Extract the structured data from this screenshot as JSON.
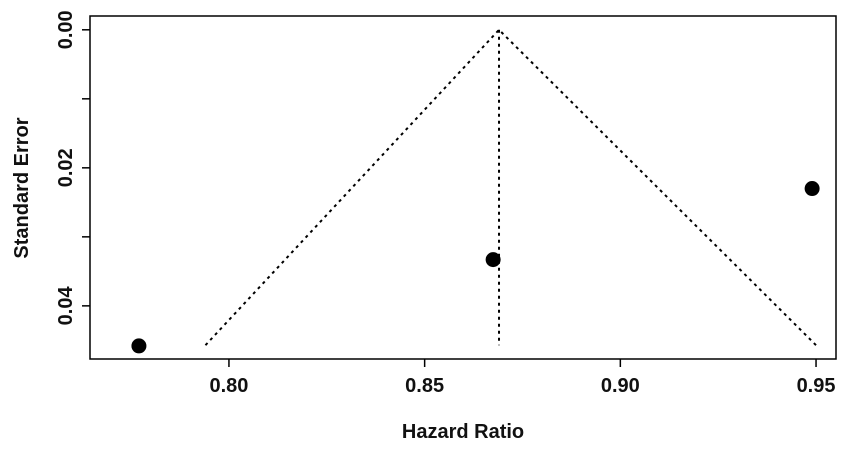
{
  "chart_data": {
    "type": "scatter",
    "x_label": "Hazard Ratio",
    "y_label": "Standard Error",
    "series": [
      {
        "x": [
          0.777,
          0.8675,
          0.949
        ],
        "values": [
          0.0458,
          0.0333,
          0.023
        ],
        "color": "#000000"
      }
    ],
    "funnel": {
      "x": [
        0.794,
        0.869,
        0.95
      ],
      "values": [
        0.0457,
        0,
        0.0457
      ]
    },
    "reference_line": {
      "x": [
        0.869,
        0.869
      ],
      "values": [
        0,
        0.0457
      ]
    },
    "xlim": [
      0.7645,
      0.9551
    ],
    "xticks": [
      {
        "value": 0.8,
        "label": "0.80"
      },
      {
        "value": 0.85,
        "label": "0.85"
      },
      {
        "value": 0.9,
        "label": "0.90"
      },
      {
        "value": 0.95,
        "label": "0.95"
      }
    ],
    "ylim": [
      -0.002,
      0.0477
    ],
    "y_reversed": true,
    "yticks": [
      {
        "value": 0,
        "label": "0.00"
      },
      {
        "value": 0.02,
        "label": "0.02"
      },
      {
        "value": 0.04,
        "label": "0.04"
      }
    ],
    "yminorticks": [
      0.01,
      0.03
    ]
  }
}
